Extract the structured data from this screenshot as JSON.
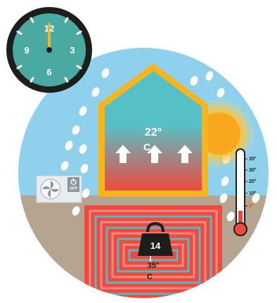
{
  "clock": {
    "numbers": {
      "twelve": "12",
      "three": "3",
      "six": "6",
      "nine": "9"
    },
    "time_hours": 12,
    "time_minutes": 0,
    "face_color": "#4aa9a0",
    "rim_color": "#1d1d1b"
  },
  "house": {
    "indoor_temp": "22°",
    "indoor_unit": "C",
    "wall_color": "#f6b51e",
    "gradient_top": "#55c1c7",
    "gradient_bottom": "#ee4a3f"
  },
  "heat_pump": {
    "power_label": "OFF"
  },
  "floor_heating": {
    "weight_value": "14",
    "water_temp": "35°",
    "water_unit": "C",
    "pipe_color_hot": "#ee4a3f",
    "pipe_color_cold": "#56b8c3"
  },
  "thermometer": {
    "scale": [
      "35°",
      "30°",
      "20°",
      "10°",
      "0°"
    ],
    "level_fraction": 0.22,
    "liquid_color": "#ee4a3f"
  },
  "scene": {
    "sky_color": "#8fd1ed",
    "ground_color": "#b5a590",
    "sun_color": "#f7b21f"
  }
}
